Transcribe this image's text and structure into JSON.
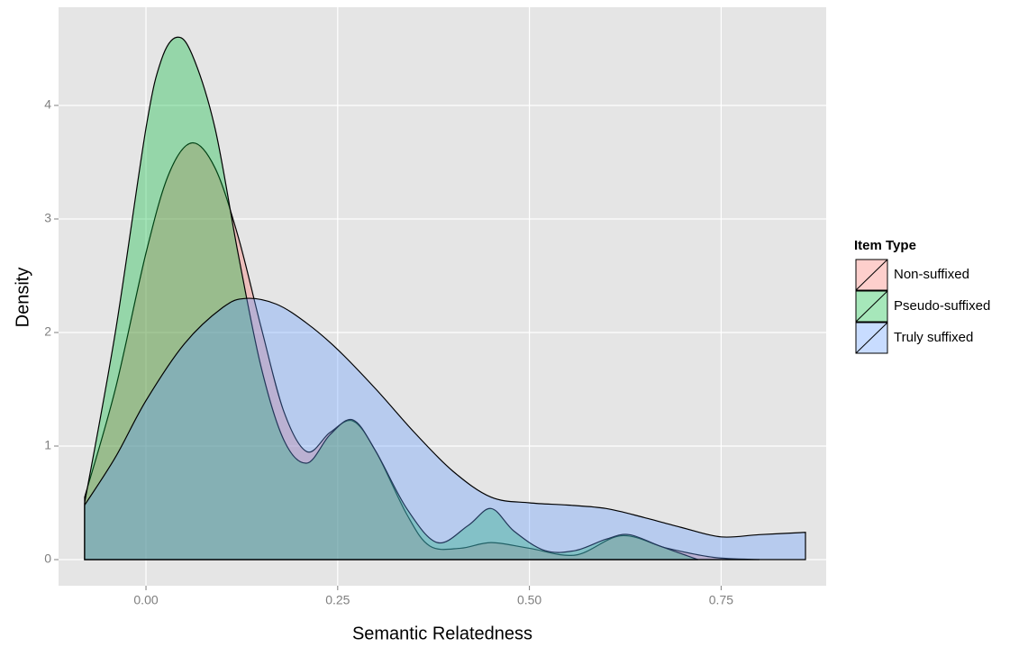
{
  "chart_data": {
    "type": "density",
    "x_label": "Semantic Relatedness",
    "y_label": "Density",
    "legend_title": "Item Type",
    "legend_position": "right",
    "grid": true,
    "xlim": [
      -0.114,
      0.887
    ],
    "ylim": [
      -0.23,
      4.865
    ],
    "xticks": [
      {
        "value": 0,
        "label": "0.00"
      },
      0.25,
      {
        "value": 0.5,
        "label": "0.50"
      },
      0.75
    ],
    "yticks": [
      0,
      1,
      2,
      3,
      4
    ],
    "series": [
      {
        "name": "Non-suffixed",
        "color": "#F8766D",
        "x": [
          -0.08,
          -0.04,
          0,
          0.03,
          0.06,
          0.09,
          0.12,
          0.15,
          0.18,
          0.21,
          0.24,
          0.27,
          0.3,
          0.34,
          0.37,
          0.41,
          0.45,
          0.5,
          0.56,
          0.62,
          0.68,
          0.74,
          0.8
        ],
        "values": [
          0.55,
          1.5,
          2.7,
          3.4,
          3.67,
          3.45,
          2.85,
          2.05,
          1.3,
          0.95,
          1.12,
          1.22,
          0.95,
          0.4,
          0.12,
          0.1,
          0.15,
          0.1,
          0.04,
          0.21,
          0.1,
          0.02,
          0
        ]
      },
      {
        "name": "Pseudo-suffixed",
        "color": "#00BA38",
        "x": [
          -0.08,
          -0.04,
          0,
          0.02,
          0.04,
          0.06,
          0.09,
          0.12,
          0.15,
          0.18,
          0.21,
          0.24,
          0.27,
          0.3,
          0.34,
          0.38,
          0.42,
          0.45,
          0.48,
          0.52,
          0.56,
          0.6,
          0.63,
          0.67,
          0.72
        ],
        "values": [
          0.5,
          2.0,
          3.8,
          4.4,
          4.6,
          4.45,
          3.8,
          2.7,
          1.7,
          1.05,
          0.85,
          1.1,
          1.23,
          0.95,
          0.45,
          0.15,
          0.3,
          0.45,
          0.25,
          0.08,
          0.08,
          0.18,
          0.22,
          0.12,
          0
        ]
      },
      {
        "name": "Truly suffixed",
        "color": "#619CFF",
        "x": [
          -0.08,
          -0.04,
          0,
          0.05,
          0.1,
          0.13,
          0.17,
          0.21,
          0.25,
          0.3,
          0.35,
          0.4,
          0.45,
          0.5,
          0.55,
          0.6,
          0.65,
          0.7,
          0.75,
          0.8,
          0.86
        ],
        "values": [
          0.48,
          0.9,
          1.4,
          1.9,
          2.22,
          2.3,
          2.25,
          2.08,
          1.85,
          1.5,
          1.12,
          0.78,
          0.55,
          0.5,
          0.48,
          0.45,
          0.37,
          0.28,
          0.2,
          0.22,
          0.24
        ]
      }
    ]
  }
}
